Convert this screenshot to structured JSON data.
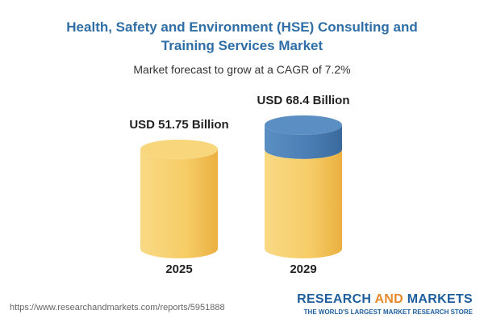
{
  "chart_data": {
    "type": "cylinder",
    "title": "Health, Safety and Environment (HSE) Consulting and Training Services Market",
    "subtitle": "Market forecast to grow at a CAGR of 7.2%",
    "categories": [
      "2025",
      "2029"
    ],
    "values": [
      51.75,
      68.4
    ],
    "value_labels": [
      "USD 51.75 Billion",
      "USD 68.4 Billion"
    ],
    "color": "#f3c45a",
    "growth_color": "#4a7db3",
    "source": "https://www.researchandmarkets.com/reports/5951888",
    "brand": [
      "RESEARCH",
      "AND",
      "MARKETS"
    ],
    "tagline": "THE WORLD'S LARGEST MARKET RESEARCH STORE"
  }
}
